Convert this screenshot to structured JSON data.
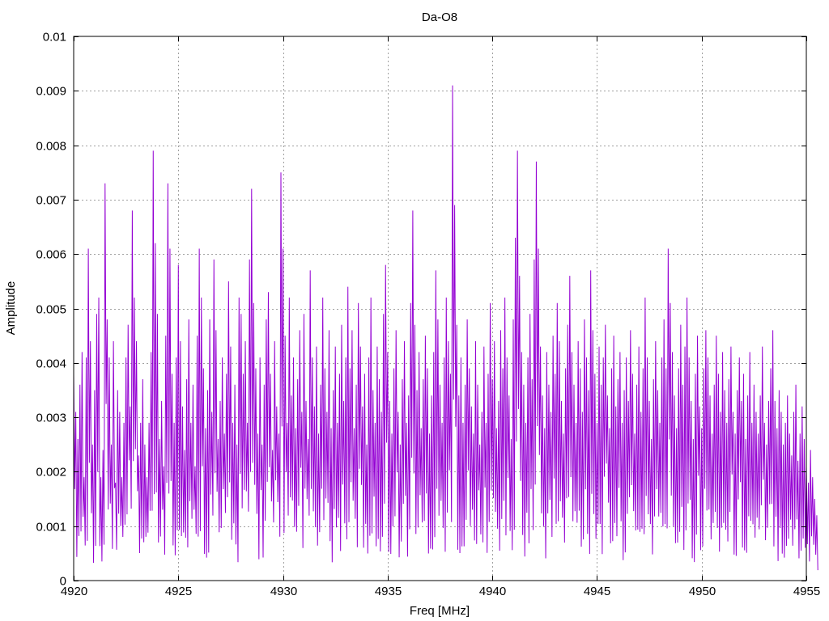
{
  "colors": {
    "series": "#9400d3",
    "grid": "#a0a0a0",
    "axis": "#000000",
    "background": "#ffffff"
  },
  "chart_data": {
    "type": "line",
    "title": "Da-O8",
    "xlabel": "Freq [MHz]",
    "ylabel": "Amplitude",
    "xlim": [
      4920,
      4955
    ],
    "ylim": [
      0,
      0.01
    ],
    "x_ticks": [
      "4920",
      "4925",
      "4930",
      "4935",
      "4940",
      "4945",
      "4950",
      "4955"
    ],
    "y_ticks": [
      "0",
      "0.001",
      "0.002",
      "0.003",
      "0.004",
      "0.005",
      "0.006",
      "0.007",
      "0.008",
      "0.009",
      "0.01"
    ],
    "x_tick_values": [
      4920,
      4925,
      4930,
      4935,
      4940,
      4945,
      4950,
      4955
    ],
    "y_tick_values": [
      0,
      0.001,
      0.002,
      0.003,
      0.004,
      0.005,
      0.006,
      0.007,
      0.008,
      0.009,
      0.01
    ],
    "grid": true,
    "legend": "none",
    "series": [
      {
        "x_start": 4920,
        "x_step": 0.1,
        "values": [
          0.0038,
          0.0031,
          0.0026,
          0.0036,
          0.0042,
          0.0019,
          0.0041,
          0.0061,
          0.0044,
          0.0025,
          0.0035,
          0.0049,
          0.0052,
          0.0019,
          0.0024,
          0.0073,
          0.0048,
          0.0041,
          0.0025,
          0.0044,
          0.0018,
          0.0035,
          0.0031,
          0.0019,
          0.0029,
          0.0041,
          0.0047,
          0.0032,
          0.0068,
          0.0052,
          0.0044,
          0.0023,
          0.0029,
          0.0037,
          0.0025,
          0.0019,
          0.0029,
          0.0042,
          0.0079,
          0.0062,
          0.0049,
          0.0026,
          0.0033,
          0.0021,
          0.0045,
          0.0073,
          0.0061,
          0.0038,
          0.0029,
          0.0041,
          0.0058,
          0.0044,
          0.0032,
          0.0024,
          0.0037,
          0.0048,
          0.0029,
          0.0036,
          0.0021,
          0.0045,
          0.0061,
          0.0052,
          0.0039,
          0.0028,
          0.0035,
          0.0048,
          0.0031,
          0.0059,
          0.0046,
          0.0026,
          0.0033,
          0.0041,
          0.0027,
          0.0038,
          0.0055,
          0.0043,
          0.0029,
          0.0036,
          0.0025,
          0.0052,
          0.0049,
          0.0038,
          0.0044,
          0.0029,
          0.0059,
          0.0072,
          0.0051,
          0.0039,
          0.0027,
          0.0041,
          0.0025,
          0.0036,
          0.0048,
          0.0053,
          0.0038,
          0.0024,
          0.0044,
          0.0032,
          0.0027,
          0.0075,
          0.0061,
          0.0045,
          0.0029,
          0.0052,
          0.0034,
          0.0041,
          0.0028,
          0.0037,
          0.0046,
          0.0031,
          0.0049,
          0.0033,
          0.0026,
          0.0057,
          0.0041,
          0.0032,
          0.0043,
          0.0027,
          0.0036,
          0.0052,
          0.0039,
          0.0031,
          0.0046,
          0.0028,
          0.0035,
          0.0043,
          0.0029,
          0.0038,
          0.0047,
          0.0033,
          0.0041,
          0.0054,
          0.0039,
          0.0046,
          0.0028,
          0.0036,
          0.0051,
          0.0043,
          0.0032,
          0.0038,
          0.0025,
          0.0041,
          0.0052,
          0.0035,
          0.0029,
          0.0043,
          0.0037,
          0.0031,
          0.0049,
          0.0058,
          0.0042,
          0.0033,
          0.0027,
          0.0039,
          0.0046,
          0.0031,
          0.0025,
          0.0037,
          0.0044,
          0.0029,
          0.0034,
          0.0051,
          0.0068,
          0.0047,
          0.0035,
          0.0042,
          0.0028,
          0.0037,
          0.0045,
          0.0039,
          0.0027,
          0.0034,
          0.0042,
          0.0057,
          0.0048,
          0.0036,
          0.0029,
          0.0041,
          0.0052,
          0.0044,
          0.0038,
          0.0091,
          0.0069,
          0.0047,
          0.0034,
          0.0041,
          0.0029,
          0.0036,
          0.0048,
          0.0039,
          0.0032,
          0.0027,
          0.0044,
          0.0036,
          0.0025,
          0.0031,
          0.0043,
          0.0029,
          0.0038,
          0.0051,
          0.0037,
          0.0044,
          0.0028,
          0.0033,
          0.0046,
          0.0039,
          0.0052,
          0.0041,
          0.0034,
          0.0026,
          0.0048,
          0.0063,
          0.0079,
          0.0056,
          0.0042,
          0.0036,
          0.0029,
          0.0041,
          0.0049,
          0.0037,
          0.0059,
          0.0077,
          0.0061,
          0.0043,
          0.0034,
          0.0028,
          0.0042,
          0.0036,
          0.0031,
          0.0045,
          0.0038,
          0.0051,
          0.0044,
          0.0033,
          0.0027,
          0.0039,
          0.0047,
          0.0056,
          0.0042,
          0.0036,
          0.0029,
          0.0044,
          0.0039,
          0.0031,
          0.0048,
          0.0041,
          0.0035,
          0.0057,
          0.0046,
          0.0038,
          0.0029,
          0.0043,
          0.0036,
          0.0041,
          0.0047,
          0.0034,
          0.0028,
          0.0039,
          0.0045,
          0.0032,
          0.0037,
          0.0042,
          0.0029,
          0.0035,
          0.0041,
          0.0033,
          0.0046,
          0.0038,
          0.0027,
          0.0036,
          0.0043,
          0.0031,
          0.0039,
          0.0052,
          0.0041,
          0.0033,
          0.0026,
          0.0037,
          0.0044,
          0.0035,
          0.0029,
          0.0041,
          0.0048,
          0.0039,
          0.0061,
          0.0051,
          0.0042,
          0.0034,
          0.0028,
          0.0039,
          0.0047,
          0.0036,
          0.0043,
          0.0052,
          0.0041,
          0.0033,
          0.0026,
          0.0038,
          0.0045,
          0.0032,
          0.0028,
          0.0039,
          0.0046,
          0.0041,
          0.0034,
          0.0027,
          0.0036,
          0.0045,
          0.0038,
          0.0031,
          0.0042,
          0.0035,
          0.0029,
          0.0037,
          0.0043,
          0.0031,
          0.0027,
          0.0035,
          0.0041,
          0.0033,
          0.0038,
          0.0026,
          0.0034,
          0.0042,
          0.0029,
          0.0036,
          0.0031,
          0.0027,
          0.0034,
          0.0043,
          0.0029,
          0.0025,
          0.0033,
          0.0039,
          0.0046,
          0.0033,
          0.0028,
          0.0035,
          0.0031,
          0.0025,
          0.0029,
          0.0034,
          0.0027,
          0.0023,
          0.0031,
          0.0036,
          0.0022,
          0.0027,
          0.0032,
          0.0026,
          0.0021,
          0.0018,
          0.0024,
          0.0019,
          0.0015,
          0.0012
        ]
      }
    ]
  }
}
